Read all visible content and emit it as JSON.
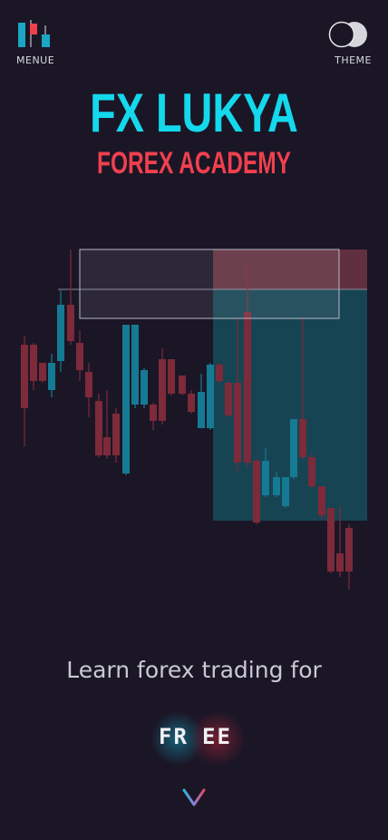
{
  "header": {
    "menu_label": "MENUE",
    "theme_label": "THEME"
  },
  "brand": {
    "title": "FX LUKYA",
    "subtitle": "FOREX ACADEMY"
  },
  "hero": {
    "tagline": "Learn forex trading for",
    "free_part_1": "FR",
    "free_part_2": "EE"
  },
  "colors": {
    "background": "#1b1626",
    "accent_cyan": "#14d8ec",
    "accent_red": "#f0404e",
    "text_light": "#c9c8d3"
  },
  "icons": {
    "menu": "candlestick-menu-icon",
    "theme": "theme-toggle-icon",
    "scroll": "chevron-down-icon"
  }
}
